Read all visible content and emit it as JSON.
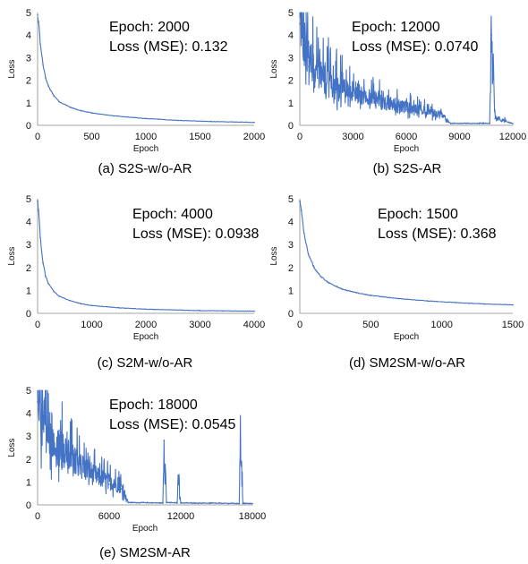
{
  "chart_data": [
    {
      "type": "line",
      "caption": "(a) S2S-w/o-AR",
      "annotation": [
        "Epoch: 2000",
        "Loss (MSE): 0.132"
      ],
      "xlabel": "Epoch",
      "ylabel": "Loss",
      "xlim": [
        0,
        2000
      ],
      "ylim": [
        0,
        5
      ],
      "xticks": [
        0,
        500,
        1000,
        1500,
        2000
      ],
      "yticks": [
        0,
        1,
        2,
        3,
        4,
        5
      ],
      "color": "#4472C4",
      "noise": "smooth",
      "series": [
        {
          "x": [
            0,
            10,
            25,
            50,
            75,
            100,
            150,
            200,
            300,
            400,
            500,
            700,
            1000,
            1300,
            1600,
            2000
          ],
          "y": [
            4.9,
            4.6,
            3.6,
            2.7,
            2.1,
            1.75,
            1.3,
            1.05,
            0.8,
            0.65,
            0.55,
            0.42,
            0.3,
            0.22,
            0.17,
            0.132
          ]
        }
      ]
    },
    {
      "type": "line",
      "caption": "(b) S2S-AR",
      "annotation": [
        "Epoch: 12000",
        "Loss (MSE): 0.0740"
      ],
      "xlabel": "Epoch",
      "ylabel": "Loss",
      "xlim": [
        0,
        12000
      ],
      "ylim": [
        0,
        5
      ],
      "xticks": [
        0,
        3000,
        6000,
        9000,
        12000
      ],
      "yticks": [
        0,
        1,
        2,
        3,
        4,
        5
      ],
      "color": "#4472C4",
      "noise": "spiky",
      "series": [
        {
          "x": [
            0,
            200,
            500,
            1000,
            2000,
            3000,
            4000,
            5000,
            6000,
            7000,
            8000,
            8500,
            10700,
            10800,
            11000,
            12000
          ],
          "y": [
            4.5,
            3.5,
            2.6,
            2.1,
            1.6,
            1.3,
            1.05,
            0.85,
            0.7,
            0.55,
            0.4,
            0.08,
            0.08,
            4.0,
            0.3,
            0.074
          ]
        }
      ]
    },
    {
      "type": "line",
      "caption": "(c) S2M-w/o-AR",
      "annotation": [
        "Epoch: 4000",
        "Loss (MSE): 0.0938"
      ],
      "xlabel": "Epoch",
      "ylabel": "Loss",
      "xlim": [
        0,
        4000
      ],
      "ylim": [
        0,
        5
      ],
      "xticks": [
        0,
        1000,
        2000,
        3000,
        4000
      ],
      "yticks": [
        0,
        1,
        2,
        3,
        4,
        5
      ],
      "color": "#4472C4",
      "noise": "smooth",
      "series": [
        {
          "x": [
            0,
            20,
            50,
            100,
            150,
            200,
            300,
            400,
            600,
            800,
            1000,
            1500,
            2000,
            3000,
            4000
          ],
          "y": [
            4.9,
            4.5,
            3.3,
            2.2,
            1.6,
            1.3,
            0.95,
            0.75,
            0.55,
            0.42,
            0.34,
            0.24,
            0.18,
            0.12,
            0.094
          ]
        }
      ]
    },
    {
      "type": "line",
      "caption": "(d) SM2SM-w/o-AR",
      "annotation": [
        "Epoch: 1500",
        "Loss (MSE): 0.368"
      ],
      "xlabel": "Epoch",
      "ylabel": "Loss",
      "xlim": [
        0,
        1500
      ],
      "ylim": [
        0,
        5
      ],
      "xticks": [
        0,
        500,
        1000,
        1500
      ],
      "yticks": [
        0,
        1,
        2,
        3,
        4,
        5
      ],
      "color": "#4472C4",
      "noise": "smooth",
      "series": [
        {
          "x": [
            0,
            10,
            30,
            60,
            100,
            150,
            200,
            300,
            400,
            500,
            700,
            900,
            1100,
            1300,
            1500
          ],
          "y": [
            4.9,
            4.5,
            3.5,
            2.6,
            2.0,
            1.6,
            1.35,
            1.05,
            0.9,
            0.78,
            0.64,
            0.54,
            0.47,
            0.41,
            0.368
          ]
        }
      ]
    },
    {
      "type": "line",
      "caption": "(e) SM2SM-AR",
      "annotation": [
        "Epoch: 18000",
        "Loss (MSE): 0.0545"
      ],
      "xlabel": "Epoch",
      "ylabel": "Loss",
      "xlim": [
        0,
        18000
      ],
      "ylim": [
        0,
        5
      ],
      "xticks": [
        0,
        6000,
        12000,
        18000
      ],
      "yticks": [
        0,
        1,
        2,
        3,
        4,
        5
      ],
      "color": "#4472C4",
      "noise": "spiky",
      "series": [
        {
          "x": [
            0,
            300,
            1000,
            2000,
            3000,
            4000,
            5000,
            6000,
            7000,
            7600,
            10500,
            10600,
            10800,
            11700,
            11800,
            12000,
            16900,
            17000,
            17200,
            18000
          ],
          "y": [
            4.5,
            3.6,
            2.7,
            2.1,
            1.7,
            1.4,
            1.1,
            0.9,
            0.7,
            0.1,
            0.08,
            2.8,
            0.1,
            0.08,
            1.2,
            0.08,
            0.06,
            2.8,
            0.06,
            0.0545
          ]
        }
      ]
    }
  ]
}
